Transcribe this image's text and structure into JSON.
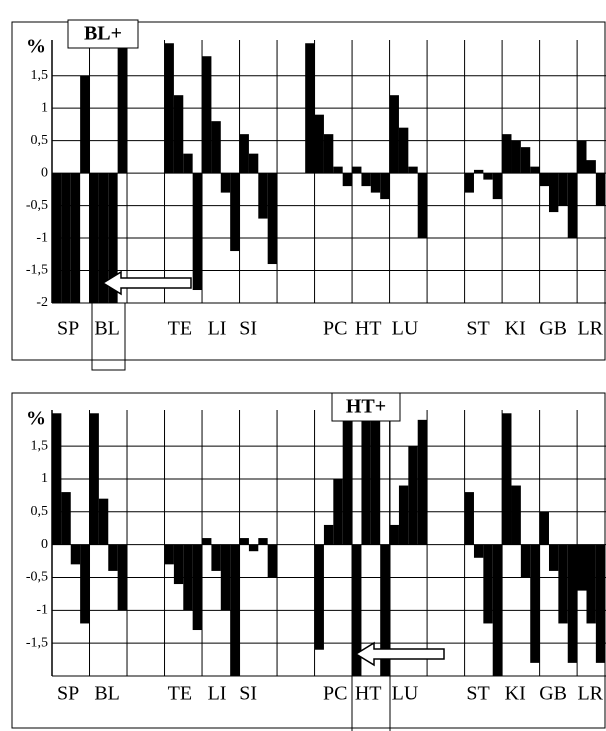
{
  "chart_data": [
    {
      "type": "bar",
      "y_label": "%",
      "annotation": "BL+",
      "color": "#000000",
      "ylim": [
        -2,
        2.05
      ],
      "yticks": [
        {
          "value": 1.5,
          "label": "1,5"
        },
        1,
        {
          "value": 0.5,
          "label": "0,5"
        },
        0,
        {
          "value": -0.5,
          "label": "-0,5"
        },
        -1,
        {
          "value": -1.5,
          "label": "-1,5"
        },
        -2
      ],
      "xlim": [
        0,
        14.77
      ],
      "xgridlines": [
        1,
        2,
        3,
        4,
        5,
        6,
        7,
        8,
        9,
        10,
        11,
        12,
        13,
        14
      ],
      "xticks": [
        {
          "value": 0.43,
          "label": "SP"
        },
        {
          "value": 1.47,
          "label": "BL"
        },
        {
          "value": 3.41,
          "label": "TE"
        },
        {
          "value": 4.4,
          "label": "LI"
        },
        {
          "value": 5.23,
          "label": "SI"
        },
        {
          "value": 7.55,
          "label": "PC"
        },
        {
          "value": 8.43,
          "label": "HT"
        },
        {
          "value": 9.41,
          "label": "LU"
        },
        {
          "value": 11.36,
          "label": "ST"
        },
        {
          "value": 12.35,
          "label": "KI"
        },
        {
          "value": 13.36,
          "label": "GB"
        },
        {
          "value": 14.35,
          "label": "LR"
        }
      ],
      "x": [
        0.125,
        0.375,
        0.625,
        0.875,
        1.125,
        1.375,
        1.625,
        1.875,
        2.125,
        2.375,
        2.625,
        2.875,
        3.125,
        3.375,
        3.625,
        3.875,
        4.125,
        4.375,
        4.625,
        4.875,
        5.125,
        5.375,
        5.625,
        5.875,
        6.125,
        6.375,
        6.625,
        6.875,
        7.125,
        7.375,
        7.625,
        7.875,
        8.125,
        8.375,
        8.625,
        8.875,
        9.125,
        9.375,
        9.625,
        9.875,
        10.125,
        10.375,
        10.625,
        10.875,
        11.125,
        11.375,
        11.625,
        11.875,
        12.125,
        12.375,
        12.625,
        12.875,
        13.125,
        13.375,
        13.625,
        13.875,
        14.125,
        14.375,
        14.625
      ],
      "values": [
        -2,
        -2,
        -2,
        1.5,
        -2,
        -2,
        -2,
        2,
        null,
        null,
        null,
        null,
        2,
        1.2,
        0.3,
        -1.8,
        1.8,
        0.8,
        -0.3,
        -1.2,
        0.6,
        0.3,
        -0.7,
        -1.4,
        null,
        null,
        null,
        2,
        0.9,
        0.6,
        0.1,
        -0.2,
        0.1,
        -0.2,
        -0.3,
        -0.4,
        1.2,
        0.7,
        0.1,
        -1,
        null,
        null,
        null,
        null,
        -0.3,
        0.05,
        -0.1,
        -0.4,
        0.6,
        0.5,
        0.4,
        0.1,
        -0.2,
        -0.6,
        -0.5,
        -1,
        0.5,
        0.2,
        -0.5
      ]
    },
    {
      "type": "bar",
      "y_label": "%",
      "annotation": "HT+",
      "color": "#000000",
      "ylim": [
        -2,
        2.05
      ],
      "yticks": [
        {
          "value": 1.5,
          "label": "1,5"
        },
        1,
        {
          "value": 0.5,
          "label": "0,5"
        },
        0,
        {
          "value": -0.5,
          "label": "-0,5"
        },
        -1,
        {
          "value": -1.5,
          "label": "-1,5"
        }
      ],
      "xlim": [
        0,
        14.77
      ],
      "xgridlines": [
        1,
        2,
        3,
        4,
        5,
        6,
        7,
        8,
        9,
        10,
        11,
        12,
        13,
        14
      ],
      "xticks": [
        {
          "value": 0.43,
          "label": "SP"
        },
        {
          "value": 1.47,
          "label": "BL"
        },
        {
          "value": 3.41,
          "label": "TE"
        },
        {
          "value": 4.4,
          "label": "LI"
        },
        {
          "value": 5.23,
          "label": "SI"
        },
        {
          "value": 7.55,
          "label": "PC"
        },
        {
          "value": 8.43,
          "label": "HT"
        },
        {
          "value": 9.41,
          "label": "LU"
        },
        {
          "value": 11.36,
          "label": "ST"
        },
        {
          "value": 12.35,
          "label": "KI"
        },
        {
          "value": 13.36,
          "label": "GB"
        },
        {
          "value": 14.35,
          "label": "LR"
        }
      ],
      "x": [
        0.125,
        0.375,
        0.625,
        0.875,
        1.125,
        1.375,
        1.625,
        1.875,
        2.125,
        2.375,
        2.625,
        2.875,
        3.125,
        3.375,
        3.625,
        3.875,
        4.125,
        4.375,
        4.625,
        4.875,
        5.125,
        5.375,
        5.625,
        5.875,
        6.125,
        6.375,
        6.625,
        6.875,
        7.125,
        7.375,
        7.625,
        7.875,
        8.125,
        8.375,
        8.625,
        8.875,
        9.125,
        9.375,
        9.625,
        9.875,
        10.125,
        10.375,
        10.625,
        10.875,
        11.125,
        11.375,
        11.625,
        11.875,
        12.125,
        12.375,
        12.625,
        12.875,
        13.125,
        13.375,
        13.625,
        13.875,
        14.125,
        14.375,
        14.625
      ],
      "values": [
        2,
        0.8,
        -0.3,
        -1.2,
        2,
        0.7,
        -0.4,
        -1,
        null,
        null,
        null,
        null,
        -0.3,
        -0.6,
        -1,
        -1.3,
        0.1,
        -0.4,
        -1,
        -2,
        0.1,
        -0.1,
        0.1,
        -0.5,
        null,
        null,
        null,
        null,
        -1.6,
        0.3,
        1,
        2,
        -2,
        2,
        2,
        -2,
        0.3,
        0.9,
        1.5,
        1.9,
        null,
        null,
        null,
        null,
        0.8,
        -0.2,
        -1.2,
        -2,
        2,
        0.9,
        -0.5,
        -1.8,
        0.5,
        -0.4,
        -1.2,
        -1.8,
        -0.7,
        -1.2,
        -1.8
      ]
    }
  ]
}
